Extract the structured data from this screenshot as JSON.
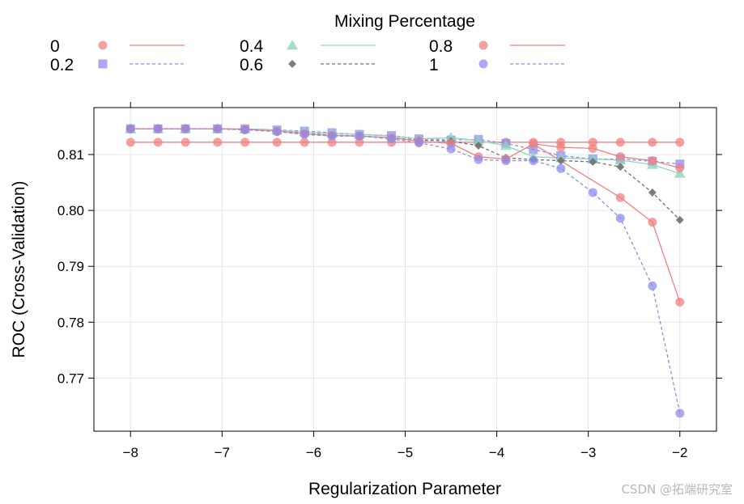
{
  "chart_data": {
    "type": "line",
    "xlabel": "Regularization Parameter",
    "ylabel": "ROC (Cross-Validation)",
    "legend_title": "Mixing Percentage",
    "legend_position": "top",
    "grid": true,
    "xlim": [
      -8.4,
      -1.6
    ],
    "ylim": [
      0.7605,
      0.8184
    ],
    "x_ticks": [
      -8,
      -7,
      -6,
      -5,
      -4,
      -3,
      -2
    ],
    "x_tick_labels": [
      "−8",
      "−7",
      "−6",
      "−5",
      "−4",
      "−3",
      "−2"
    ],
    "y_ticks": [
      0.77,
      0.78,
      0.79,
      0.8,
      0.81
    ],
    "y_tick_labels": [
      "0.77",
      "0.78",
      "0.79",
      "0.80",
      "0.81"
    ],
    "x": [
      -8,
      -7.7,
      -7.4,
      -7.05,
      -6.75,
      -6.4,
      -6.1,
      -5.8,
      -5.5,
      -5.15,
      -4.85,
      -4.5,
      -4.2,
      -3.9,
      -3.6,
      -3.3,
      -2.95,
      -2.65,
      -2.3,
      -2
    ],
    "series": [
      {
        "name": "0",
        "color": "#f08080",
        "marker": "circle",
        "dash": "solid",
        "values": [
          0.8122,
          0.8122,
          0.8122,
          0.8122,
          0.8122,
          0.8122,
          0.8122,
          0.8122,
          0.8122,
          0.8122,
          0.8122,
          0.8122,
          0.8122,
          0.8122,
          0.8122,
          0.8122,
          0.8122,
          0.8122,
          0.8122,
          0.8122
        ]
      },
      {
        "name": "0.2",
        "color": "#8c8cf0",
        "marker": "square",
        "dash": "dashed",
        "values": [
          0.8146,
          0.8146,
          0.8146,
          0.8146,
          0.8146,
          0.8144,
          0.8142,
          0.8139,
          0.8136,
          0.8134,
          0.8128,
          0.8126,
          0.8127,
          0.812,
          0.8109,
          0.8098,
          0.8092,
          0.8092,
          0.8088,
          0.8083
        ]
      },
      {
        "name": "0.4",
        "color": "#8fd4bf",
        "marker": "triangle",
        "dash": "solid",
        "values": [
          0.8146,
          0.8146,
          0.8146,
          0.8146,
          0.8146,
          0.8144,
          0.814,
          0.8138,
          0.8136,
          0.8133,
          0.8128,
          0.813,
          0.8125,
          0.8116,
          0.8096,
          0.8094,
          0.8092,
          0.809,
          0.8082,
          0.8066
        ]
      },
      {
        "name": "0.6",
        "color": "#707070",
        "marker": "diamond",
        "dash": "dashed",
        "values": [
          0.8146,
          0.8146,
          0.8146,
          0.8146,
          0.8145,
          0.8142,
          0.8138,
          0.8135,
          0.8133,
          0.813,
          0.8126,
          0.8124,
          0.8116,
          0.8094,
          0.8091,
          0.8089,
          0.8087,
          0.8078,
          0.8032,
          0.7983
        ]
      },
      {
        "name": "0.8",
        "color": "#f08080",
        "marker": "circle",
        "dash": "solid",
        "values": [
          0.8146,
          0.8146,
          0.8146,
          0.8146,
          0.8145,
          0.8142,
          0.8137,
          0.8134,
          0.8133,
          0.813,
          0.8124,
          0.812,
          0.8096,
          0.8092,
          0.8119,
          0.8113,
          0.8111,
          0.8096,
          0.8089,
          0.8076
        ]
      },
      {
        "name": "1",
        "color": "#8c8cf0",
        "marker": "circle",
        "dash": "dashed",
        "values": [
          0.8146,
          0.8146,
          0.8146,
          0.8146,
          0.8144,
          0.8141,
          0.8136,
          0.8133,
          0.8133,
          0.8128,
          0.8121,
          0.811,
          0.8091,
          0.8089,
          0.8089,
          0.8075,
          0.8032,
          0.7986,
          0.7865,
          0.7637
        ]
      }
    ],
    "extra_points": [
      {
        "series": "0.8",
        "x": -2.65,
        "value": 0.8023
      },
      {
        "series": "0.8",
        "x": -2.3,
        "value": 0.7979
      },
      {
        "series": "0.8",
        "x": -2,
        "value": 0.7836
      }
    ]
  },
  "watermark": "CSDN @拓端研究室"
}
